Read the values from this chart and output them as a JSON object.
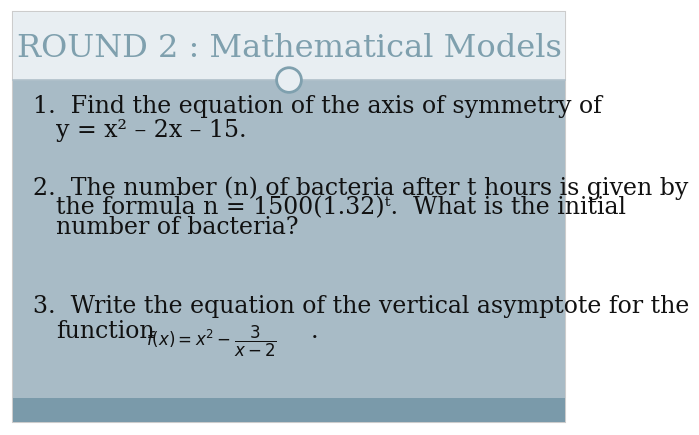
{
  "title": "ROUND 2 : Mathematical Models",
  "title_color": "#7fa0ae",
  "bg_outer": "#ffffff",
  "header_bg": "#e8eef2",
  "body_bg": "#a8bbc6",
  "footer_bg": "#7a9aaa",
  "border_color": "#b0c0ca",
  "slide_border": "#cccccc",
  "line1_q": "1.  Find the equation of the axis of symmetry of",
  "line1_eq": "y = x² – 2x – 15.",
  "line2_q1": "2.  The number (n) of bacteria after t hours is given by",
  "line2_q2": "the formula n = 1500(1.32)ᵗ.  What is the initial",
  "line2_q3": "number of bacteria?",
  "line3_q1": "3.  Write the equation of the vertical asymptote for the",
  "line3_q2": "function",
  "text_color": "#111111",
  "circle_color": "#7fa0ae",
  "font_size": 17,
  "indent1": 30,
  "indent2": 60
}
